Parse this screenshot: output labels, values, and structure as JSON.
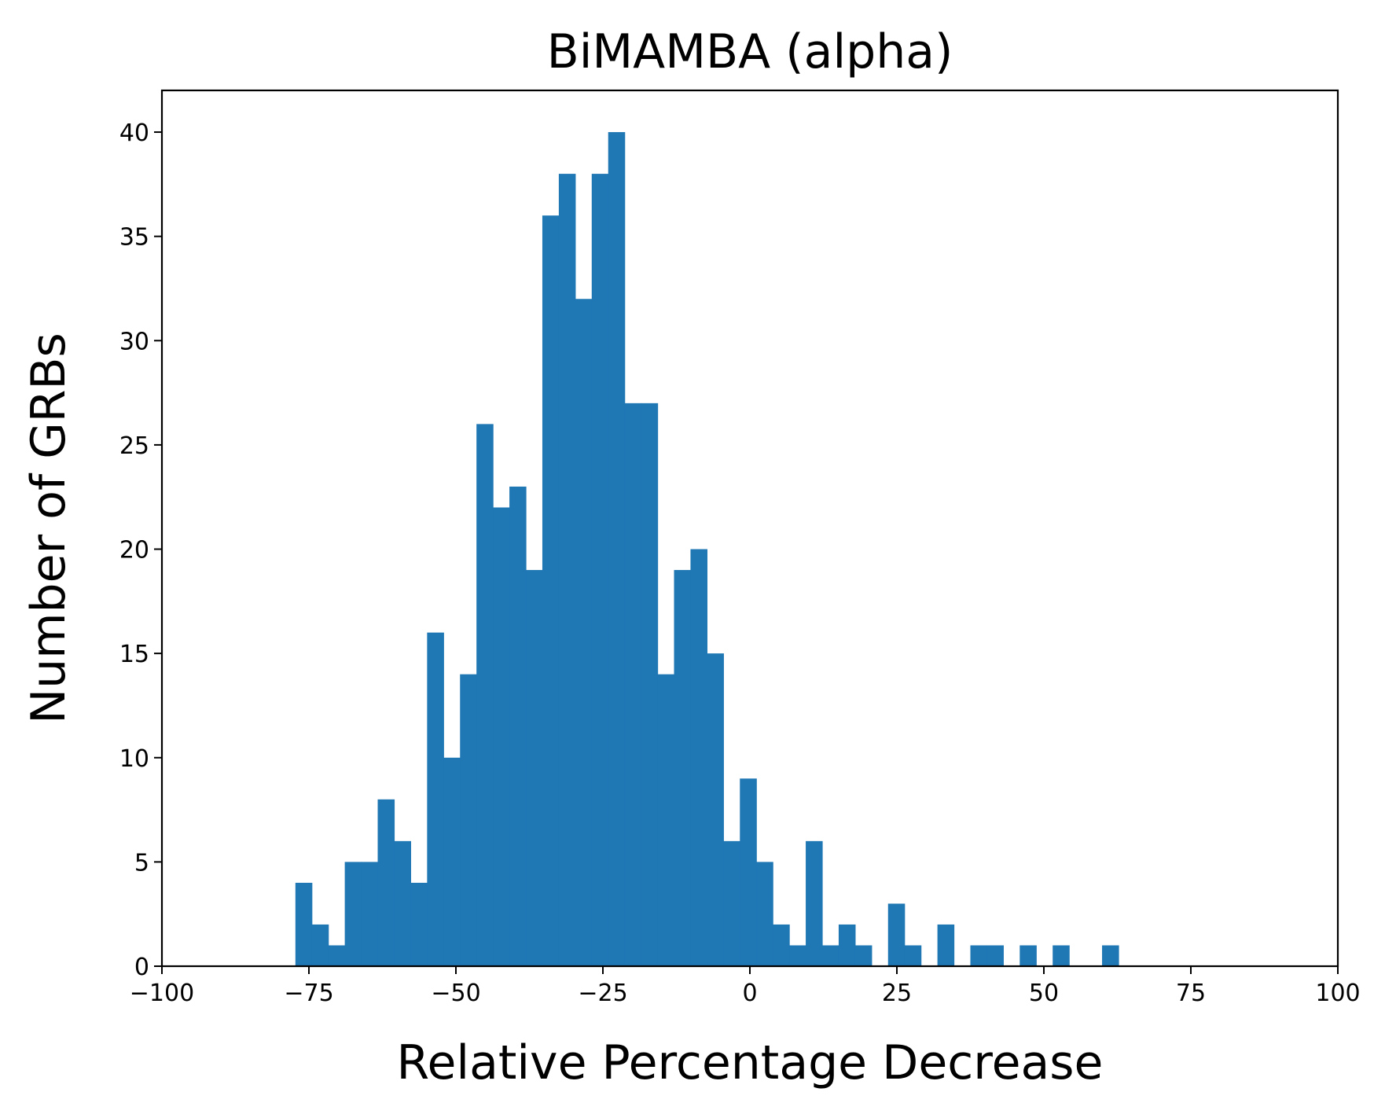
{
  "chart_data": {
    "type": "bar",
    "title": "BiMAMBA (alpha)",
    "xlabel": "Relative Percentage Decrease",
    "ylabel": "Number of GRBs",
    "xlim": [
      -100,
      100
    ],
    "ylim": [
      0,
      42
    ],
    "grid": false,
    "bar_color": "#1f77b4",
    "xticks": [
      -100,
      -75,
      -50,
      -25,
      0,
      25,
      50,
      75,
      100
    ],
    "xtick_labels": [
      "−100",
      "−75",
      "−50",
      "−25",
      "0",
      "25",
      "50",
      "75",
      "100"
    ],
    "yticks": [
      0,
      5,
      10,
      15,
      20,
      25,
      30,
      35,
      40
    ],
    "ytick_labels": [
      "0",
      "5",
      "10",
      "15",
      "20",
      "25",
      "30",
      "35",
      "40"
    ],
    "bin_edges": [
      -77.3,
      -74.5,
      -71.7,
      -68.9,
      -66.1,
      -63.3,
      -60.5,
      -57.7,
      -54.9,
      -52.1,
      -49.3,
      -46.5,
      -43.7,
      -40.9,
      -38.1,
      -35.3,
      -32.5,
      -29.7,
      -26.9,
      -24.1,
      -21.3,
      -18.5,
      -15.7,
      -12.9,
      -10.1,
      -7.3,
      -4.5,
      -1.7,
      1.1,
      3.9,
      6.7,
      9.5,
      12.3,
      15.1,
      17.9,
      20.7,
      23.5,
      26.3,
      29.1,
      31.9,
      34.7,
      37.5,
      40.3,
      43.1,
      45.9,
      48.7,
      51.5,
      54.3,
      57.1,
      59.9,
      62.7
    ],
    "counts": [
      4,
      2,
      1,
      5,
      5,
      8,
      6,
      4,
      16,
      10,
      14,
      26,
      22,
      23,
      19,
      36,
      38,
      32,
      38,
      40,
      27,
      27,
      14,
      19,
      20,
      15,
      6,
      9,
      5,
      2,
      1,
      6,
      1,
      2,
      1,
      0,
      3,
      1,
      0,
      2,
      0,
      1,
      1,
      0,
      1,
      0,
      1,
      0,
      0,
      1
    ]
  }
}
